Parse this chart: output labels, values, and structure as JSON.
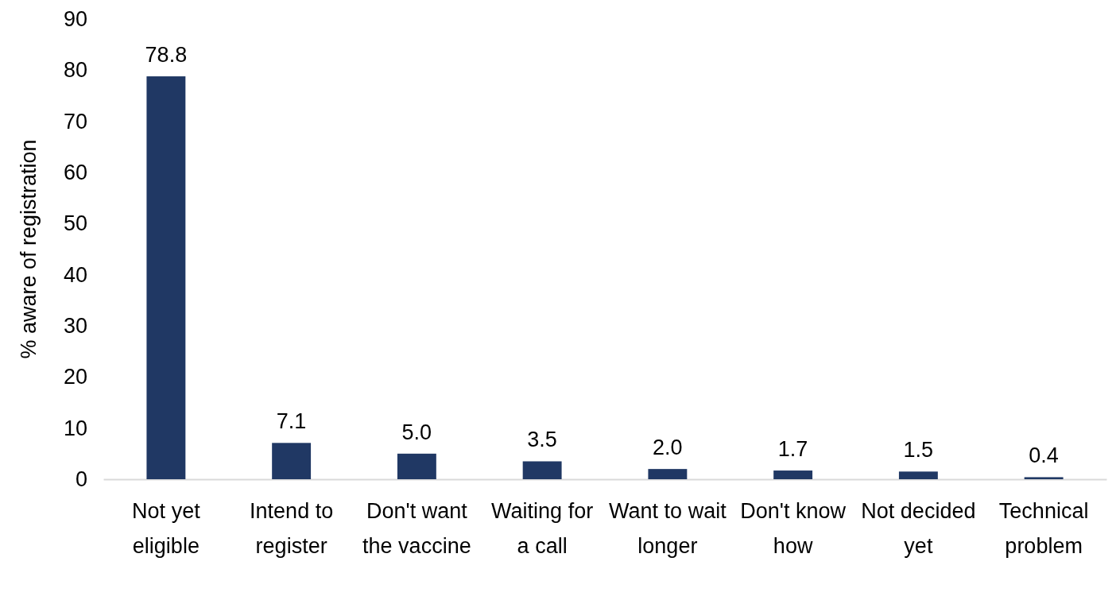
{
  "chart_data": {
    "type": "bar",
    "ylabel": "% aware of registration",
    "categories": [
      "Not yet eligible",
      "Intend to register",
      "Don't want the vaccine",
      "Waiting for a call",
      "Want to wait longer",
      "Don't know how",
      "Not decided yet",
      "Technical problem"
    ],
    "values": [
      78.8,
      7.1,
      5.0,
      3.5,
      2.0,
      1.7,
      1.5,
      0.4
    ],
    "value_labels": [
      "78.8",
      "7.1",
      "5.0",
      "3.5",
      "2.0",
      "1.7",
      "1.5",
      "0.4"
    ],
    "color": "#203864",
    "ylim": [
      0,
      90
    ],
    "yticks": [
      0,
      10,
      20,
      30,
      40,
      50,
      60,
      70,
      80,
      90
    ],
    "grid": false
  }
}
